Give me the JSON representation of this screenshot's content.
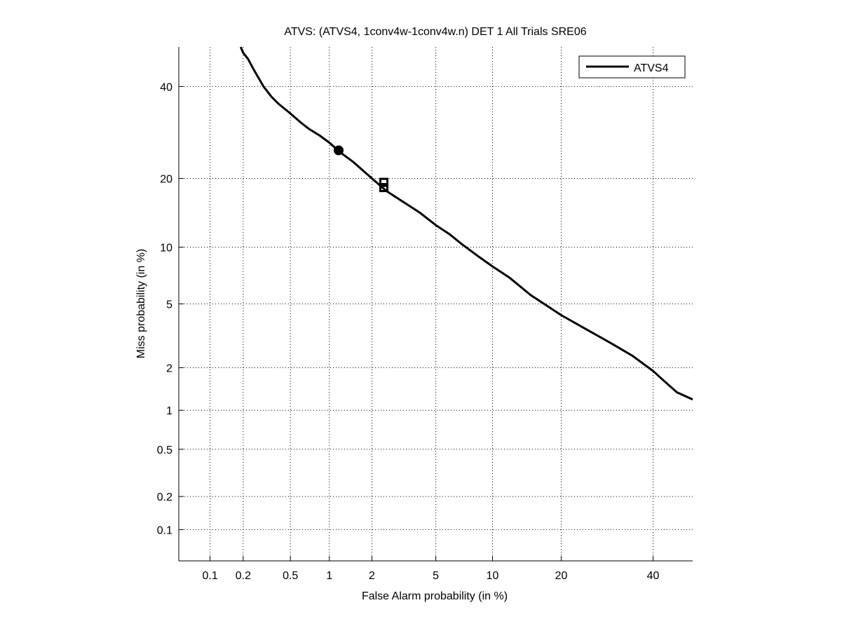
{
  "chart_data": {
    "type": "line",
    "scale": "probit",
    "title": "ATVS: (ATVS4, 1conv4w-1conv4w.n) DET 1 All Trials SRE06",
    "xlabel": "False Alarm probability (in %)",
    "ylabel": "Miss probability (in %)",
    "xlim": [
      0.05,
      50
    ],
    "ylim": [
      0.05,
      50
    ],
    "xticks": [
      0.1,
      0.2,
      0.5,
      1,
      2,
      5,
      10,
      20,
      40
    ],
    "xtick_labels": [
      "0.1",
      "0.2",
      "0.5",
      "1",
      "2",
      "5",
      "10",
      "20",
      "40"
    ],
    "yticks": [
      0.1,
      0.2,
      0.5,
      1,
      2,
      5,
      10,
      20,
      40
    ],
    "ytick_labels": [
      "0.1",
      "0.2",
      "0.5",
      "1",
      "2",
      "5",
      "10",
      "20",
      "40"
    ],
    "grid": true,
    "legend": {
      "position": "top-right",
      "entries": [
        "ATVS4"
      ]
    },
    "series": [
      {
        "name": "ATVS4",
        "color": "#000000",
        "x": [
          0.19,
          0.2,
          0.22,
          0.25,
          0.3,
          0.35,
          0.4,
          0.5,
          0.6,
          0.7,
          0.85,
          1,
          1.2,
          1.5,
          2,
          2.5,
          3,
          4,
          5,
          6,
          7,
          8.5,
          10,
          12,
          15,
          20,
          25,
          30,
          35,
          40,
          43,
          46,
          50
        ],
        "y": [
          50,
          48.5,
          47,
          44,
          40,
          37.5,
          35.8,
          33.5,
          31.5,
          30,
          28.5,
          27,
          25,
          23,
          20,
          17.8,
          16.5,
          14.5,
          12.7,
          11.5,
          10.3,
          9,
          8,
          7,
          5.6,
          4.3,
          3.5,
          2.9,
          2.4,
          1.9,
          1.6,
          1.35,
          1.2
        ]
      }
    ],
    "markers": [
      {
        "shape": "circle",
        "x": 1.17,
        "y": 25.4
      },
      {
        "shape": "square",
        "x": 2.4,
        "y": 19.3
      },
      {
        "shape": "square",
        "x": 2.4,
        "y": 18.4
      }
    ]
  }
}
